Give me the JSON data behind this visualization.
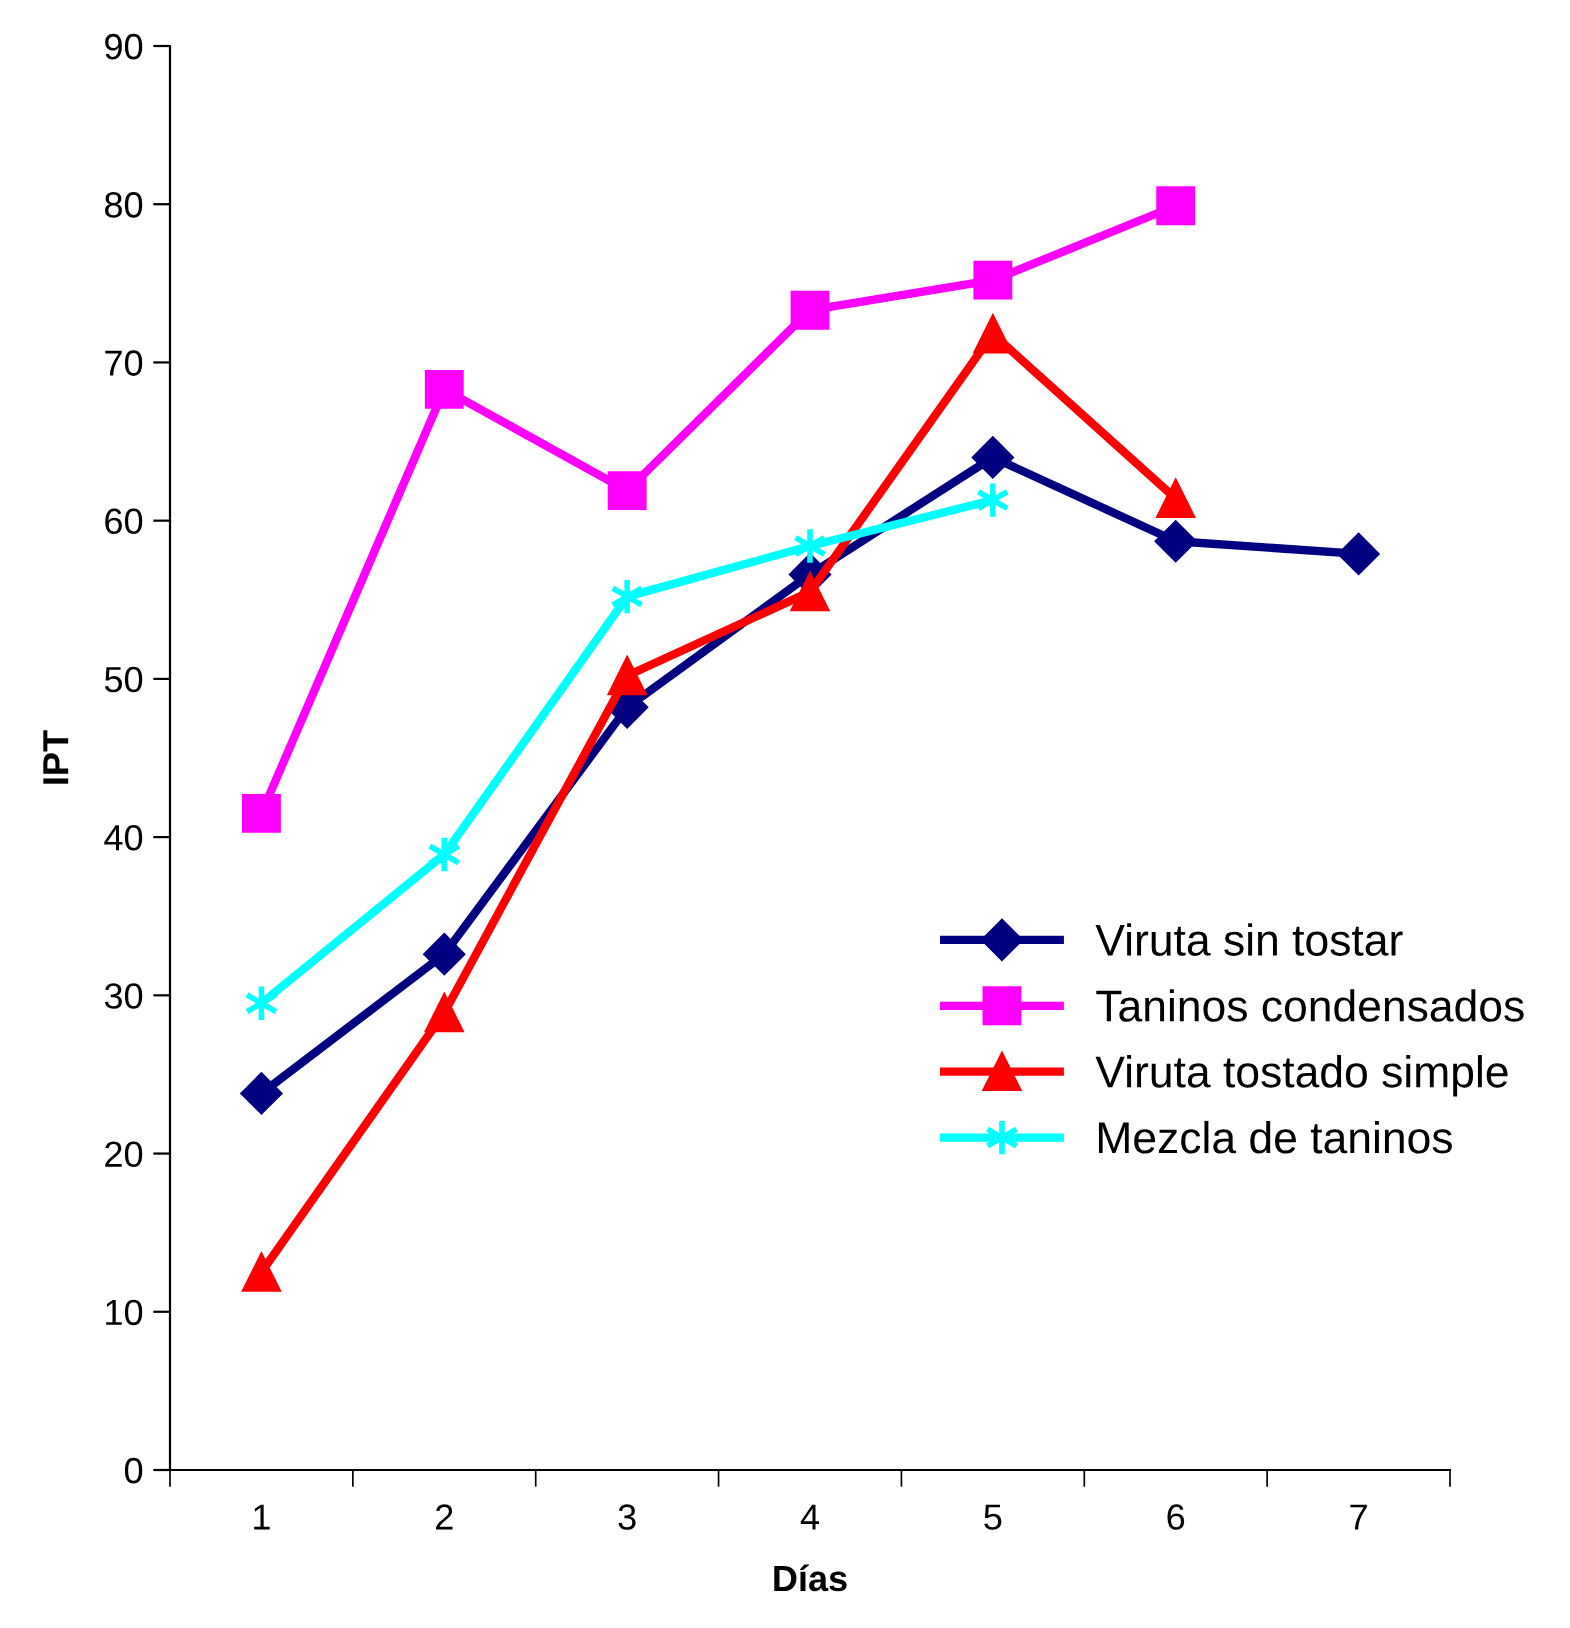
{
  "chart_data": {
    "type": "line",
    "xlabel": "Días",
    "ylabel": "IPT",
    "categories": [
      "1",
      "2",
      "3",
      "4",
      "5",
      "6",
      "7"
    ],
    "ylim": [
      0,
      90
    ],
    "yticks": [
      0,
      10,
      20,
      30,
      40,
      50,
      60,
      70,
      80,
      90
    ],
    "grid": false,
    "legend": "right",
    "series": [
      {
        "name": "Viruta sin tostar",
        "color": "#000080",
        "marker": "diamond",
        "values": [
          23.8,
          32.6,
          48.2,
          56.6,
          64.0,
          58.7,
          57.9
        ]
      },
      {
        "name": "Taninos condensados",
        "color": "#ff00ff",
        "marker": "square",
        "values": [
          41.5,
          68.3,
          61.9,
          73.3,
          75.2,
          79.9,
          null
        ]
      },
      {
        "name": "Viruta tostado simple",
        "color": "#ff0000",
        "marker": "triangle",
        "values": [
          12.5,
          28.9,
          50.2,
          55.5,
          71.8,
          61.4,
          null
        ]
      },
      {
        "name": "Mezcla de taninos",
        "color": "#00ffff",
        "marker": "cross",
        "values": [
          29.5,
          38.9,
          55.2,
          58.4,
          61.3,
          null,
          null
        ]
      }
    ]
  }
}
